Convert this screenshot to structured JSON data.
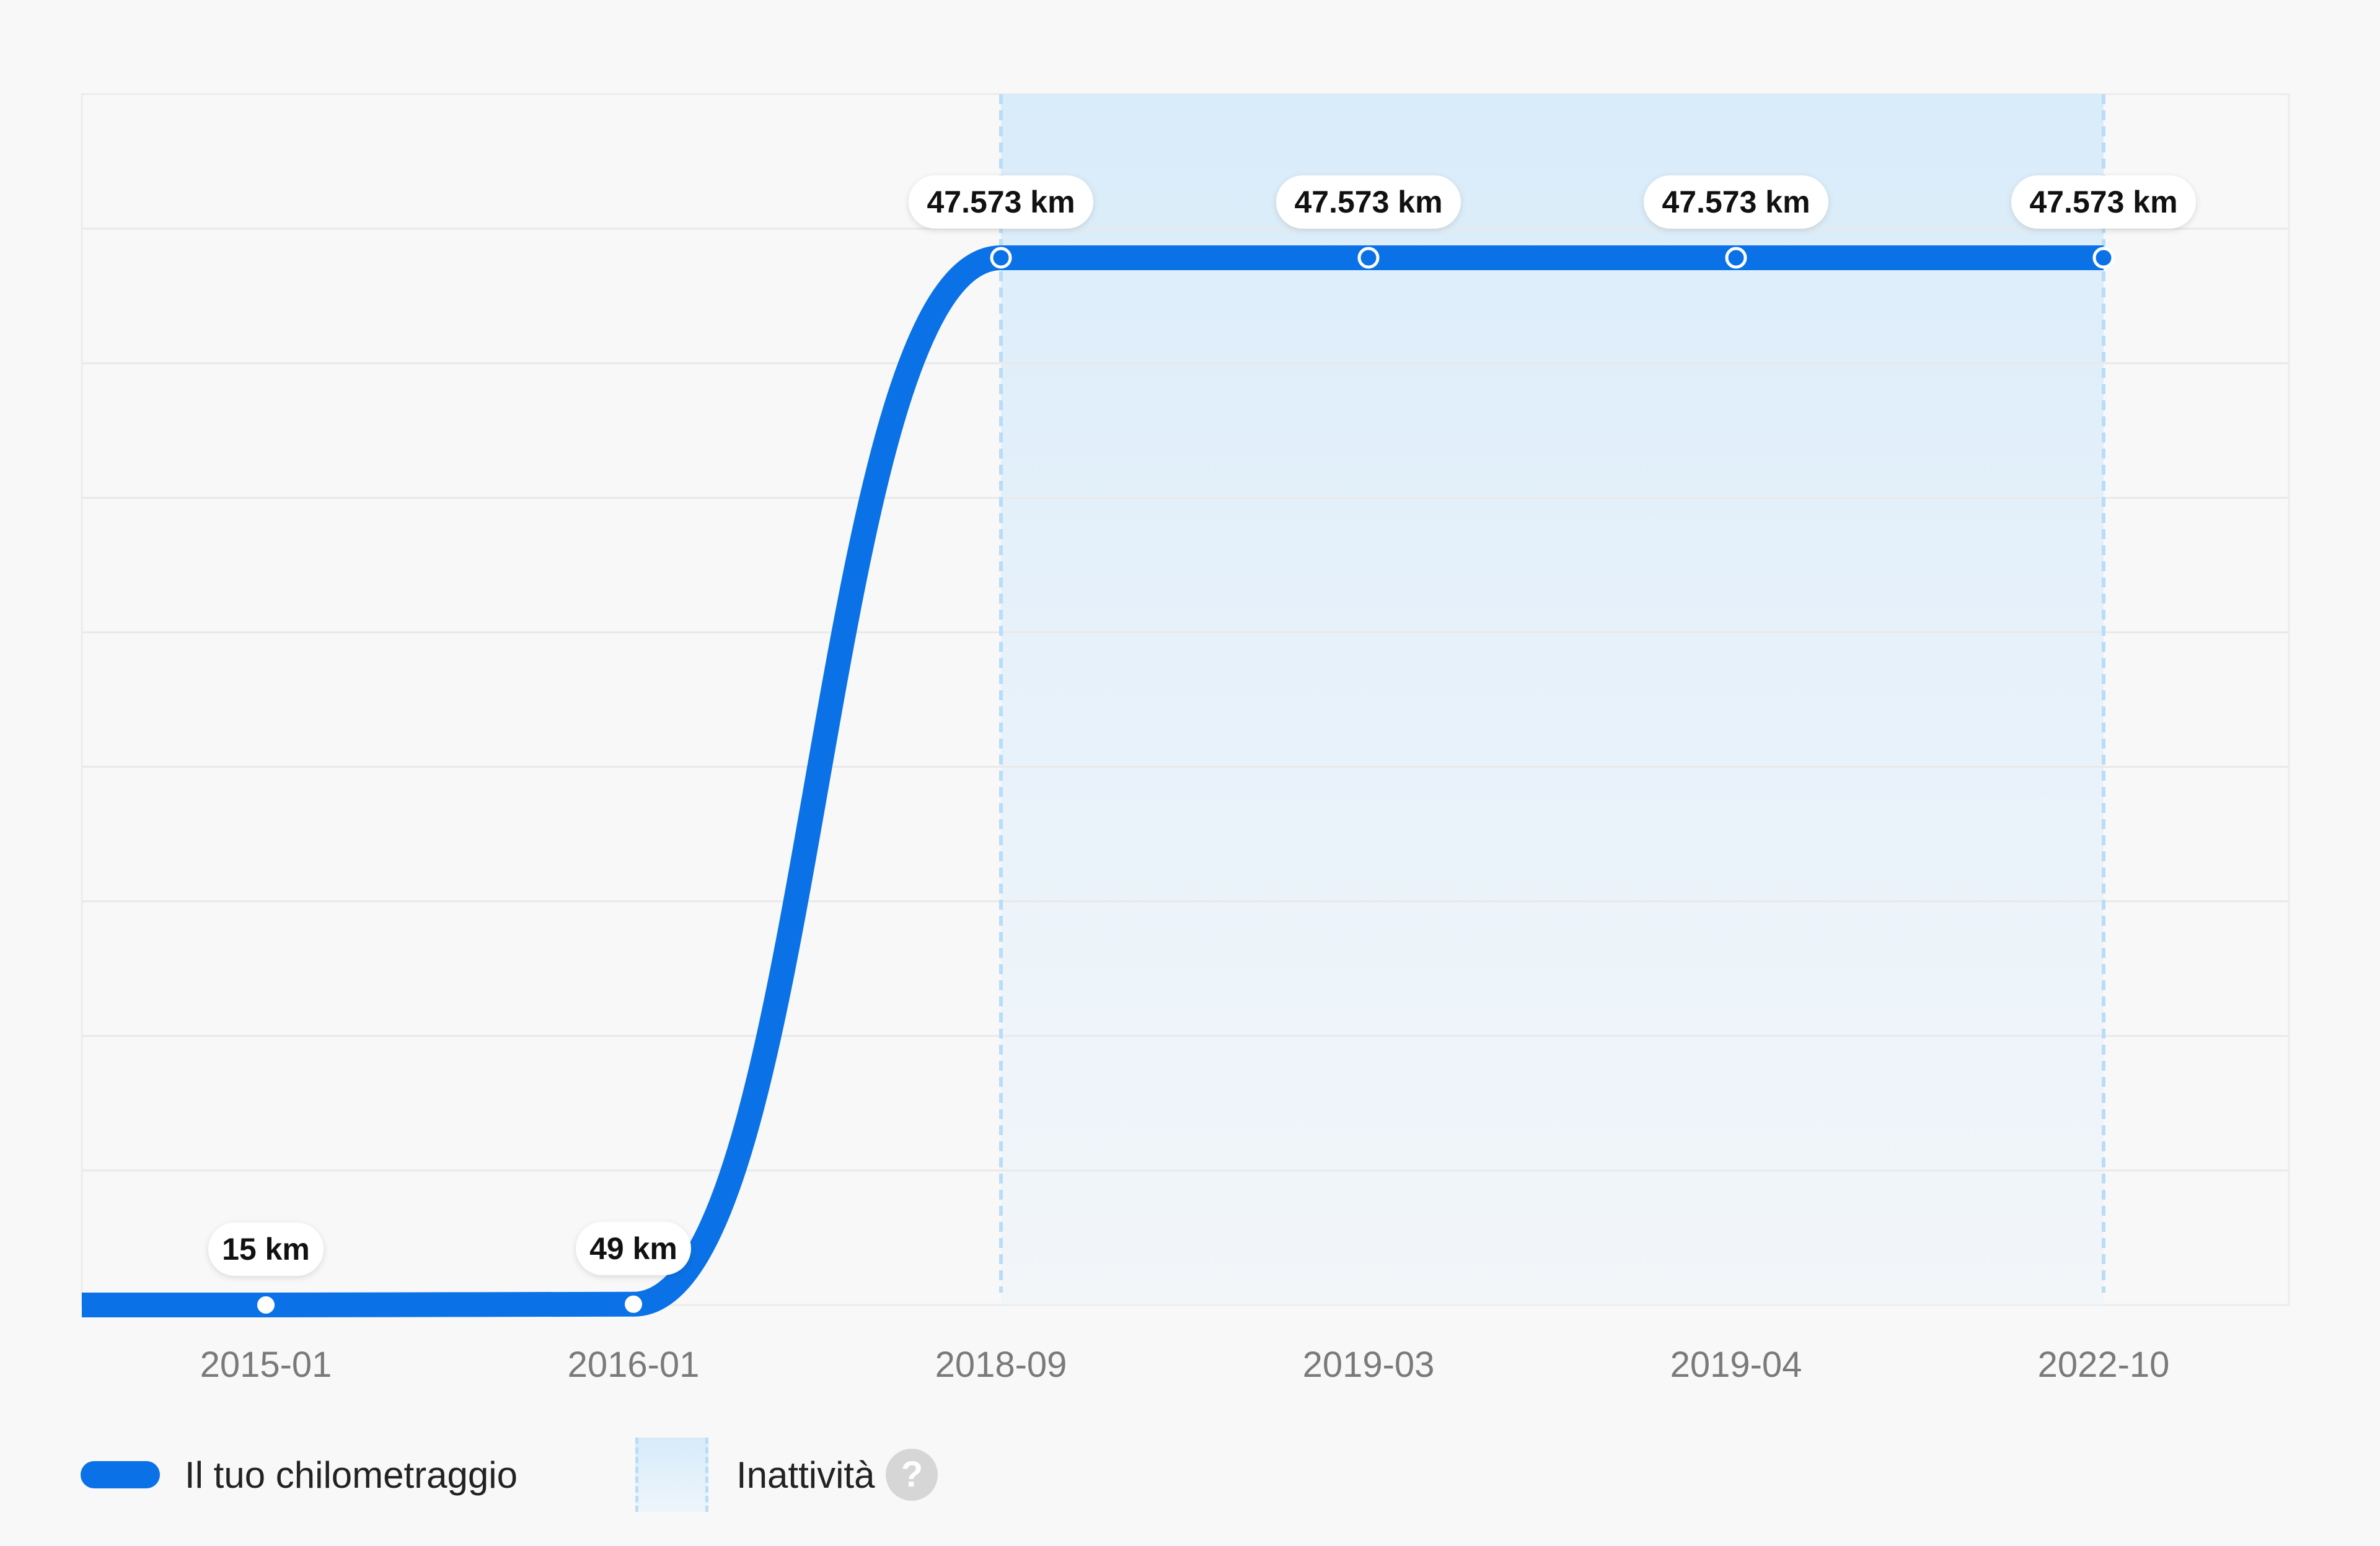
{
  "chart_data": {
    "type": "line",
    "categories": [
      "2015-01",
      "2016-01",
      "2018-09",
      "2019-03",
      "2019-04",
      "2022-10"
    ],
    "series": [
      {
        "name": "Il tuo chilometraggio",
        "values": [
          15,
          49,
          47573,
          47573,
          47573,
          47573
        ],
        "labels": [
          "15 km",
          "49 km",
          "47.573 km",
          "47.573 km",
          "47.573 km",
          "47.573 km"
        ]
      }
    ],
    "inactivity_range": {
      "from": "2018-09",
      "to": "2022-10"
    },
    "ylim": [
      15,
      47573
    ],
    "grid": true,
    "legend_position": "bottom-left",
    "colors": {
      "line": "#0a72e6",
      "inactivity_fill": "#d9ecfb",
      "inactivity_border": "#b9dcf7"
    }
  },
  "legend": {
    "mileage_label": "Il tuo chilometraggio",
    "inactivity_label": "Inattività",
    "help_icon": "?"
  }
}
